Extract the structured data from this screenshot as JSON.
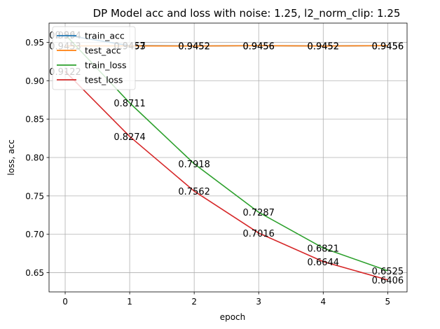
{
  "chart_data": {
    "type": "line",
    "title": "DP Model acc and loss with noise: 1.25, l2_norm_clip: 1.25",
    "xlabel": "epoch",
    "ylabel": "loss, acc",
    "x": [
      0,
      1,
      2,
      3,
      4,
      5
    ],
    "xlim": [
      -0.25,
      5.3
    ],
    "ylim": [
      0.625,
      0.975
    ],
    "xticks": [
      "0",
      "1",
      "2",
      "3",
      "4",
      "5"
    ],
    "yticks": [
      "0.65",
      "0.70",
      "0.75",
      "0.80",
      "0.85",
      "0.90",
      "0.95"
    ],
    "grid": true,
    "legend_position": "top-left",
    "series": [
      {
        "name": "train_acc",
        "color": "#1f77b4",
        "values": [
          0.9594,
          0.9457,
          0.9452,
          0.9456,
          0.9452,
          0.9456
        ],
        "labels": [
          "0.9594",
          "0.9457",
          "0.9452",
          "0.9456",
          "0.9452",
          "0.9456"
        ]
      },
      {
        "name": "test_acc",
        "color": "#ff7f0e",
        "values": [
          0.9453,
          0.9453,
          0.9452,
          0.9456,
          0.9452,
          0.9456
        ],
        "labels": [
          "0.9453",
          "0.9453",
          "0.9452",
          "0.9456",
          "0.9452",
          "0.9456"
        ]
      },
      {
        "name": "train_loss",
        "color": "#2ca02c",
        "values": [
          0.96,
          0.8711,
          0.7918,
          0.7287,
          0.6821,
          0.6525
        ],
        "labels": [
          "0.96",
          "0.8711",
          "0.7918",
          "0.7287",
          "0.6821",
          "0.6525"
        ]
      },
      {
        "name": "test_loss",
        "color": "#d62728",
        "values": [
          0.9122,
          0.8274,
          0.7562,
          0.7016,
          0.6644,
          0.6406
        ],
        "labels": [
          "0.9122",
          "0.8274",
          "0.7562",
          "0.7016",
          "0.6644",
          "0.6406"
        ]
      }
    ]
  }
}
